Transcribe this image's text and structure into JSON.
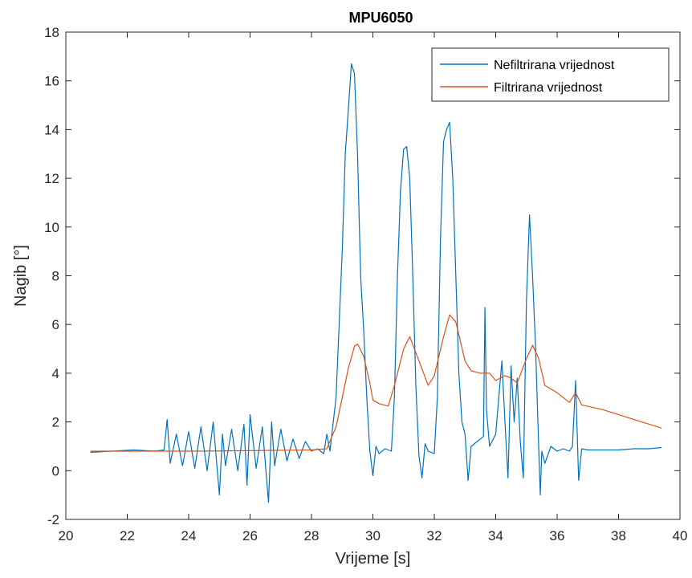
{
  "chart_data": {
    "type": "line",
    "title": "MPU6050",
    "xlabel": "Vrijeme [s]",
    "ylabel": "Nagib [°]",
    "xlim": [
      20,
      40
    ],
    "ylim": [
      -2,
      18
    ],
    "xticks": [
      20,
      22,
      24,
      26,
      28,
      30,
      32,
      34,
      36,
      38,
      40
    ],
    "yticks": [
      -2,
      0,
      2,
      4,
      6,
      8,
      10,
      12,
      14,
      16,
      18
    ],
    "grid": false,
    "legend_position": "top-right",
    "series": [
      {
        "name": "Nefiltrirana vrijednost",
        "color": "#0072BD",
        "x": [
          20.8,
          21.5,
          22.2,
          22.9,
          23.2,
          23.3,
          23.4,
          23.6,
          23.8,
          24.0,
          24.2,
          24.4,
          24.6,
          24.8,
          25.0,
          25.1,
          25.2,
          25.4,
          25.6,
          25.8,
          25.9,
          26.0,
          26.2,
          26.4,
          26.6,
          26.7,
          26.8,
          27.0,
          27.2,
          27.4,
          27.6,
          27.8,
          28.0,
          28.2,
          28.4,
          28.5,
          28.6,
          28.8,
          29.0,
          29.1,
          29.2,
          29.3,
          29.4,
          29.5,
          29.6,
          29.7,
          29.8,
          29.9,
          30.0,
          30.1,
          30.2,
          30.4,
          30.6,
          30.7,
          30.8,
          30.9,
          31.0,
          31.1,
          31.2,
          31.3,
          31.4,
          31.5,
          31.6,
          31.7,
          31.8,
          32.0,
          32.1,
          32.2,
          32.3,
          32.4,
          32.5,
          32.6,
          32.7,
          32.8,
          32.9,
          33.0,
          33.1,
          33.2,
          33.4,
          33.6,
          33.65,
          33.7,
          33.8,
          34.0,
          34.1,
          34.2,
          34.3,
          34.4,
          34.5,
          34.6,
          34.7,
          34.8,
          34.9,
          35.0,
          35.1,
          35.2,
          35.3,
          35.4,
          35.45,
          35.5,
          35.6,
          35.8,
          36.0,
          36.2,
          36.4,
          36.5,
          36.6,
          36.7,
          36.8,
          37.0,
          37.5,
          38.0,
          38.5,
          39.0,
          39.4
        ],
        "values": [
          0.75,
          0.8,
          0.85,
          0.8,
          0.85,
          2.1,
          0.3,
          1.5,
          0.2,
          1.6,
          0.1,
          1.8,
          0.0,
          2.0,
          -1.0,
          1.5,
          0.2,
          1.7,
          0.0,
          1.9,
          -0.6,
          2.3,
          0.1,
          1.8,
          -1.3,
          2.0,
          0.2,
          1.7,
          0.4,
          1.3,
          0.5,
          1.2,
          0.8,
          0.9,
          0.7,
          1.5,
          0.8,
          3.0,
          9.0,
          13.0,
          14.8,
          16.7,
          16.3,
          13.0,
          8.0,
          5.8,
          3.0,
          0.8,
          -0.2,
          1.0,
          0.7,
          0.9,
          0.8,
          3.0,
          8.0,
          11.5,
          13.2,
          13.3,
          12.0,
          8.0,
          3.5,
          0.6,
          -0.3,
          1.1,
          0.8,
          0.7,
          3.0,
          9.5,
          13.5,
          14.0,
          14.3,
          12.0,
          8.0,
          4.0,
          2.0,
          1.5,
          -0.4,
          1.0,
          1.2,
          1.4,
          6.7,
          2.5,
          1.0,
          1.5,
          3.0,
          4.5,
          2.0,
          -0.3,
          4.3,
          2.0,
          3.8,
          1.2,
          -0.3,
          7.0,
          10.5,
          8.0,
          5.0,
          1.0,
          -1.0,
          0.8,
          0.3,
          1.0,
          0.8,
          0.9,
          0.8,
          1.0,
          3.7,
          -0.4,
          0.9,
          0.85,
          0.85,
          0.85,
          0.9,
          0.9,
          0.95
        ]
      },
      {
        "name": "Filtrirana vrijednost",
        "color": "#D95319",
        "x": [
          20.8,
          22.0,
          24.0,
          26.0,
          28.0,
          28.5,
          28.8,
          29.0,
          29.2,
          29.4,
          29.5,
          29.7,
          29.9,
          30.0,
          30.2,
          30.5,
          30.7,
          31.0,
          31.2,
          31.5,
          31.8,
          32.0,
          32.3,
          32.5,
          32.7,
          33.0,
          33.2,
          33.5,
          33.8,
          34.0,
          34.3,
          34.5,
          34.7,
          35.0,
          35.2,
          35.4,
          35.6,
          36.0,
          36.4,
          36.6,
          36.8,
          37.5,
          38.5,
          39.4
        ],
        "values": [
          0.8,
          0.8,
          0.8,
          0.82,
          0.85,
          0.9,
          1.8,
          3.0,
          4.2,
          5.1,
          5.2,
          4.7,
          3.6,
          2.9,
          2.75,
          2.65,
          3.5,
          5.0,
          5.5,
          4.5,
          3.5,
          3.9,
          5.5,
          6.4,
          6.1,
          4.5,
          4.1,
          4.0,
          4.0,
          3.7,
          3.9,
          3.8,
          3.6,
          4.6,
          5.15,
          4.6,
          3.5,
          3.2,
          2.8,
          3.2,
          2.7,
          2.5,
          2.1,
          1.75
        ]
      }
    ]
  }
}
